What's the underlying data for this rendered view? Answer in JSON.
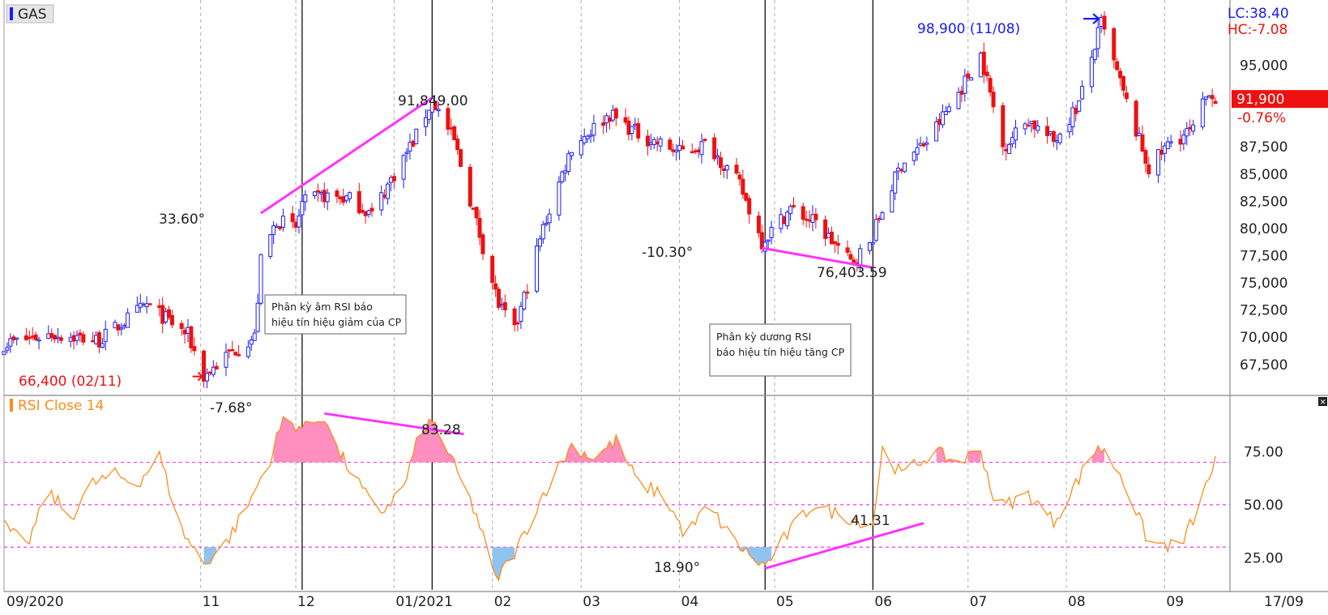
{
  "symbol": "GAS",
  "header_right": {
    "lc": "LC:38.40",
    "hc": "HC:-7.08"
  },
  "last_price": {
    "label": "91,900",
    "change": "-0.76%"
  },
  "colors": {
    "up": "#1a1aff",
    "down": "#ee1111",
    "rsi": "#ff8c1a",
    "trend": "#ff33ff",
    "ob_fill": "#ff8fbf",
    "os_fill": "#8fc4f0"
  },
  "chart_data": [
    {
      "type": "candlestick",
      "title": "GAS",
      "x_dates": [
        "2020-08-31",
        "2021-09-17"
      ],
      "ylim": [
        65400,
        100400
      ],
      "y_ticks": [
        "67,500",
        "70,000",
        "72,500",
        "75,000",
        "77,500",
        "80,000",
        "82,500",
        "85,000",
        "87,500",
        "95,000"
      ],
      "x_tick_labels": [
        "09/2020",
        "11",
        "12",
        "01/2021",
        "02",
        "03",
        "04",
        "05",
        "06",
        "07",
        "08",
        "09",
        "17/09"
      ],
      "close_path": [
        [
          "2020-08-31",
          69400
        ],
        [
          "2020-09-15",
          70300
        ],
        [
          "2020-09-30",
          69700
        ],
        [
          "2020-10-15",
          73000
        ],
        [
          "2020-10-28",
          70200
        ],
        [
          "2020-11-02",
          66400
        ],
        [
          "2020-11-10",
          68500
        ],
        [
          "2020-11-18",
          70000
        ],
        [
          "2020-11-20",
          77000
        ],
        [
          "2020-11-25",
          80800
        ],
        [
          "2020-12-01",
          80000
        ],
        [
          "2020-12-03",
          82300
        ],
        [
          "2020-12-10",
          83000
        ],
        [
          "2020-12-18",
          82700
        ],
        [
          "2020-12-25",
          81300
        ],
        [
          "2020-12-31",
          84500
        ],
        [
          "2021-01-08",
          88500
        ],
        [
          "2021-01-13",
          91849
        ],
        [
          "2021-01-20",
          88000
        ],
        [
          "2021-01-27",
          80500
        ],
        [
          "2021-02-03",
          73000
        ],
        [
          "2021-02-08",
          70500
        ],
        [
          "2021-02-17",
          80000
        ],
        [
          "2021-02-26",
          87500
        ],
        [
          "2021-03-10",
          90500
        ],
        [
          "2021-03-20",
          88500
        ],
        [
          "2021-04-01",
          87000
        ],
        [
          "2021-04-10",
          87800
        ],
        [
          "2021-04-20",
          84000
        ],
        [
          "2021-04-27",
          78800
        ],
        [
          "2021-05-06",
          81800
        ],
        [
          "2021-05-14",
          80500
        ],
        [
          "2021-05-25",
          76900
        ],
        [
          "2021-05-31",
          78500
        ],
        [
          "2021-06-03",
          81000
        ],
        [
          "2021-06-10",
          86000
        ],
        [
          "2021-06-18",
          88000
        ],
        [
          "2021-06-28",
          92500
        ],
        [
          "2021-07-05",
          96000
        ],
        [
          "2021-07-12",
          87500
        ],
        [
          "2021-07-20",
          90000
        ],
        [
          "2021-07-28",
          88000
        ],
        [
          "2021-08-05",
          91500
        ],
        [
          "2021-08-12",
          98900
        ],
        [
          "2021-08-20",
          91500
        ],
        [
          "2021-08-27",
          85500
        ],
        [
          "2021-09-03",
          88000
        ],
        [
          "2021-09-10",
          89000
        ],
        [
          "2021-09-15",
          92800
        ],
        [
          "2021-09-17",
          91900
        ]
      ],
      "annotations": {
        "low_marker": "66,400 (02/11)",
        "high_marker": "98,900 (11/08)",
        "peak_value": "91,849.00",
        "trough_value": "76,403.59",
        "angle_up": "33.60°",
        "angle_down": "-10.30°"
      },
      "trendlines": [
        {
          "from": [
            "2020-11-20",
            81400
          ],
          "to": [
            "2021-01-13",
            92000
          ]
        },
        {
          "from": [
            "2021-04-27",
            78200
          ],
          "to": [
            "2021-06-01",
            76400
          ]
        }
      ]
    },
    {
      "type": "line",
      "title": "RSI Close 14",
      "ylim": [
        11,
        100
      ],
      "y_ticks": [
        "25.00",
        "50.00",
        "75.00"
      ],
      "levels": [
        30,
        50,
        70
      ],
      "rsi_path": [
        [
          "2020-08-31",
          40
        ],
        [
          "2020-09-07",
          30
        ],
        [
          "2020-09-14",
          56
        ],
        [
          "2020-09-21",
          44
        ],
        [
          "2020-09-28",
          60
        ],
        [
          "2020-10-05",
          64
        ],
        [
          "2020-10-12",
          60
        ],
        [
          "2020-10-19",
          73
        ],
        [
          "2020-10-26",
          38
        ],
        [
          "2020-11-02",
          22
        ],
        [
          "2020-11-09",
          32
        ],
        [
          "2020-11-16",
          50
        ],
        [
          "2020-11-23",
          72
        ],
        [
          "2020-11-27",
          90
        ],
        [
          "2020-12-04",
          86
        ],
        [
          "2020-12-10",
          92
        ],
        [
          "2020-12-14",
          76
        ],
        [
          "2020-12-20",
          62
        ],
        [
          "2020-12-27",
          45
        ],
        [
          "2021-01-04",
          58
        ],
        [
          "2021-01-10",
          88
        ],
        [
          "2021-01-14",
          88
        ],
        [
          "2021-01-20",
          68
        ],
        [
          "2021-01-27",
          45
        ],
        [
          "2021-02-02",
          14
        ],
        [
          "2021-02-09",
          30
        ],
        [
          "2021-02-17",
          55
        ],
        [
          "2021-02-26",
          78
        ],
        [
          "2021-03-05",
          72
        ],
        [
          "2021-03-12",
          80
        ],
        [
          "2021-03-19",
          60
        ],
        [
          "2021-03-27",
          55
        ],
        [
          "2021-04-03",
          35
        ],
        [
          "2021-04-10",
          50
        ],
        [
          "2021-04-18",
          33
        ],
        [
          "2021-04-24",
          25
        ],
        [
          "2021-04-28",
          21
        ],
        [
          "2021-05-06",
          38
        ],
        [
          "2021-05-13",
          50
        ],
        [
          "2021-05-22",
          45
        ],
        [
          "2021-06-01",
          41
        ],
        [
          "2021-06-04",
          76
        ],
        [
          "2021-06-10",
          64
        ],
        [
          "2021-06-20",
          75
        ],
        [
          "2021-06-28",
          70
        ],
        [
          "2021-07-05",
          76
        ],
        [
          "2021-07-10",
          48
        ],
        [
          "2021-07-20",
          55
        ],
        [
          "2021-07-28",
          42
        ],
        [
          "2021-08-04",
          60
        ],
        [
          "2021-08-11",
          78
        ],
        [
          "2021-08-18",
          65
        ],
        [
          "2021-08-27",
          32
        ],
        [
          "2021-09-06",
          30
        ],
        [
          "2021-09-12",
          50
        ],
        [
          "2021-09-17",
          71
        ]
      ],
      "annotations": {
        "angle_up": "-7.68°",
        "angle_down": "18.90°",
        "value_high": "83.28",
        "value_low": "41.31"
      },
      "trendlines": [
        {
          "from": [
            "2020-12-10",
            93
          ],
          "to": [
            "2021-01-23",
            83.3
          ]
        },
        {
          "from": [
            "2021-04-28",
            20
          ],
          "to": [
            "2021-06-17",
            41.3
          ]
        }
      ]
    }
  ],
  "notes": [
    {
      "key": "bearish",
      "lines": [
        "Phân kỳ âm RSI báo",
        "hiệu tín hiệu giảm của CP"
      ]
    },
    {
      "key": "bullish",
      "lines": [
        "Phân kỳ dương RSI",
        "báo hiệu tín hiệu tăng CP"
      ]
    }
  ]
}
